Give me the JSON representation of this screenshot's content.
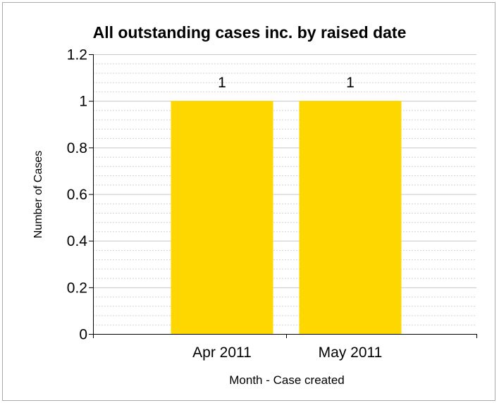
{
  "chart_data": {
    "type": "bar",
    "title": "All outstanding cases inc. by raised date",
    "xlabel": "Month - Case created",
    "ylabel": "Number of Cases",
    "categories": [
      "Apr 2011",
      "May 2011"
    ],
    "values": [
      1,
      1
    ],
    "data_labels": [
      "1",
      "1"
    ],
    "ylim": [
      0,
      1.2
    ],
    "yticks": [
      0,
      0.2,
      0.4,
      0.6,
      0.8,
      1,
      1.2
    ],
    "ytick_labels": [
      "0",
      "0.2",
      "0.4",
      "0.6",
      "0.8",
      "1",
      "1.2"
    ],
    "grid": true,
    "legend": "none",
    "colors": {
      "bar": "#FFD700",
      "grid_major": "#c8c8c8",
      "grid_minor": "#d2d2d2",
      "axis": "#000000"
    }
  }
}
